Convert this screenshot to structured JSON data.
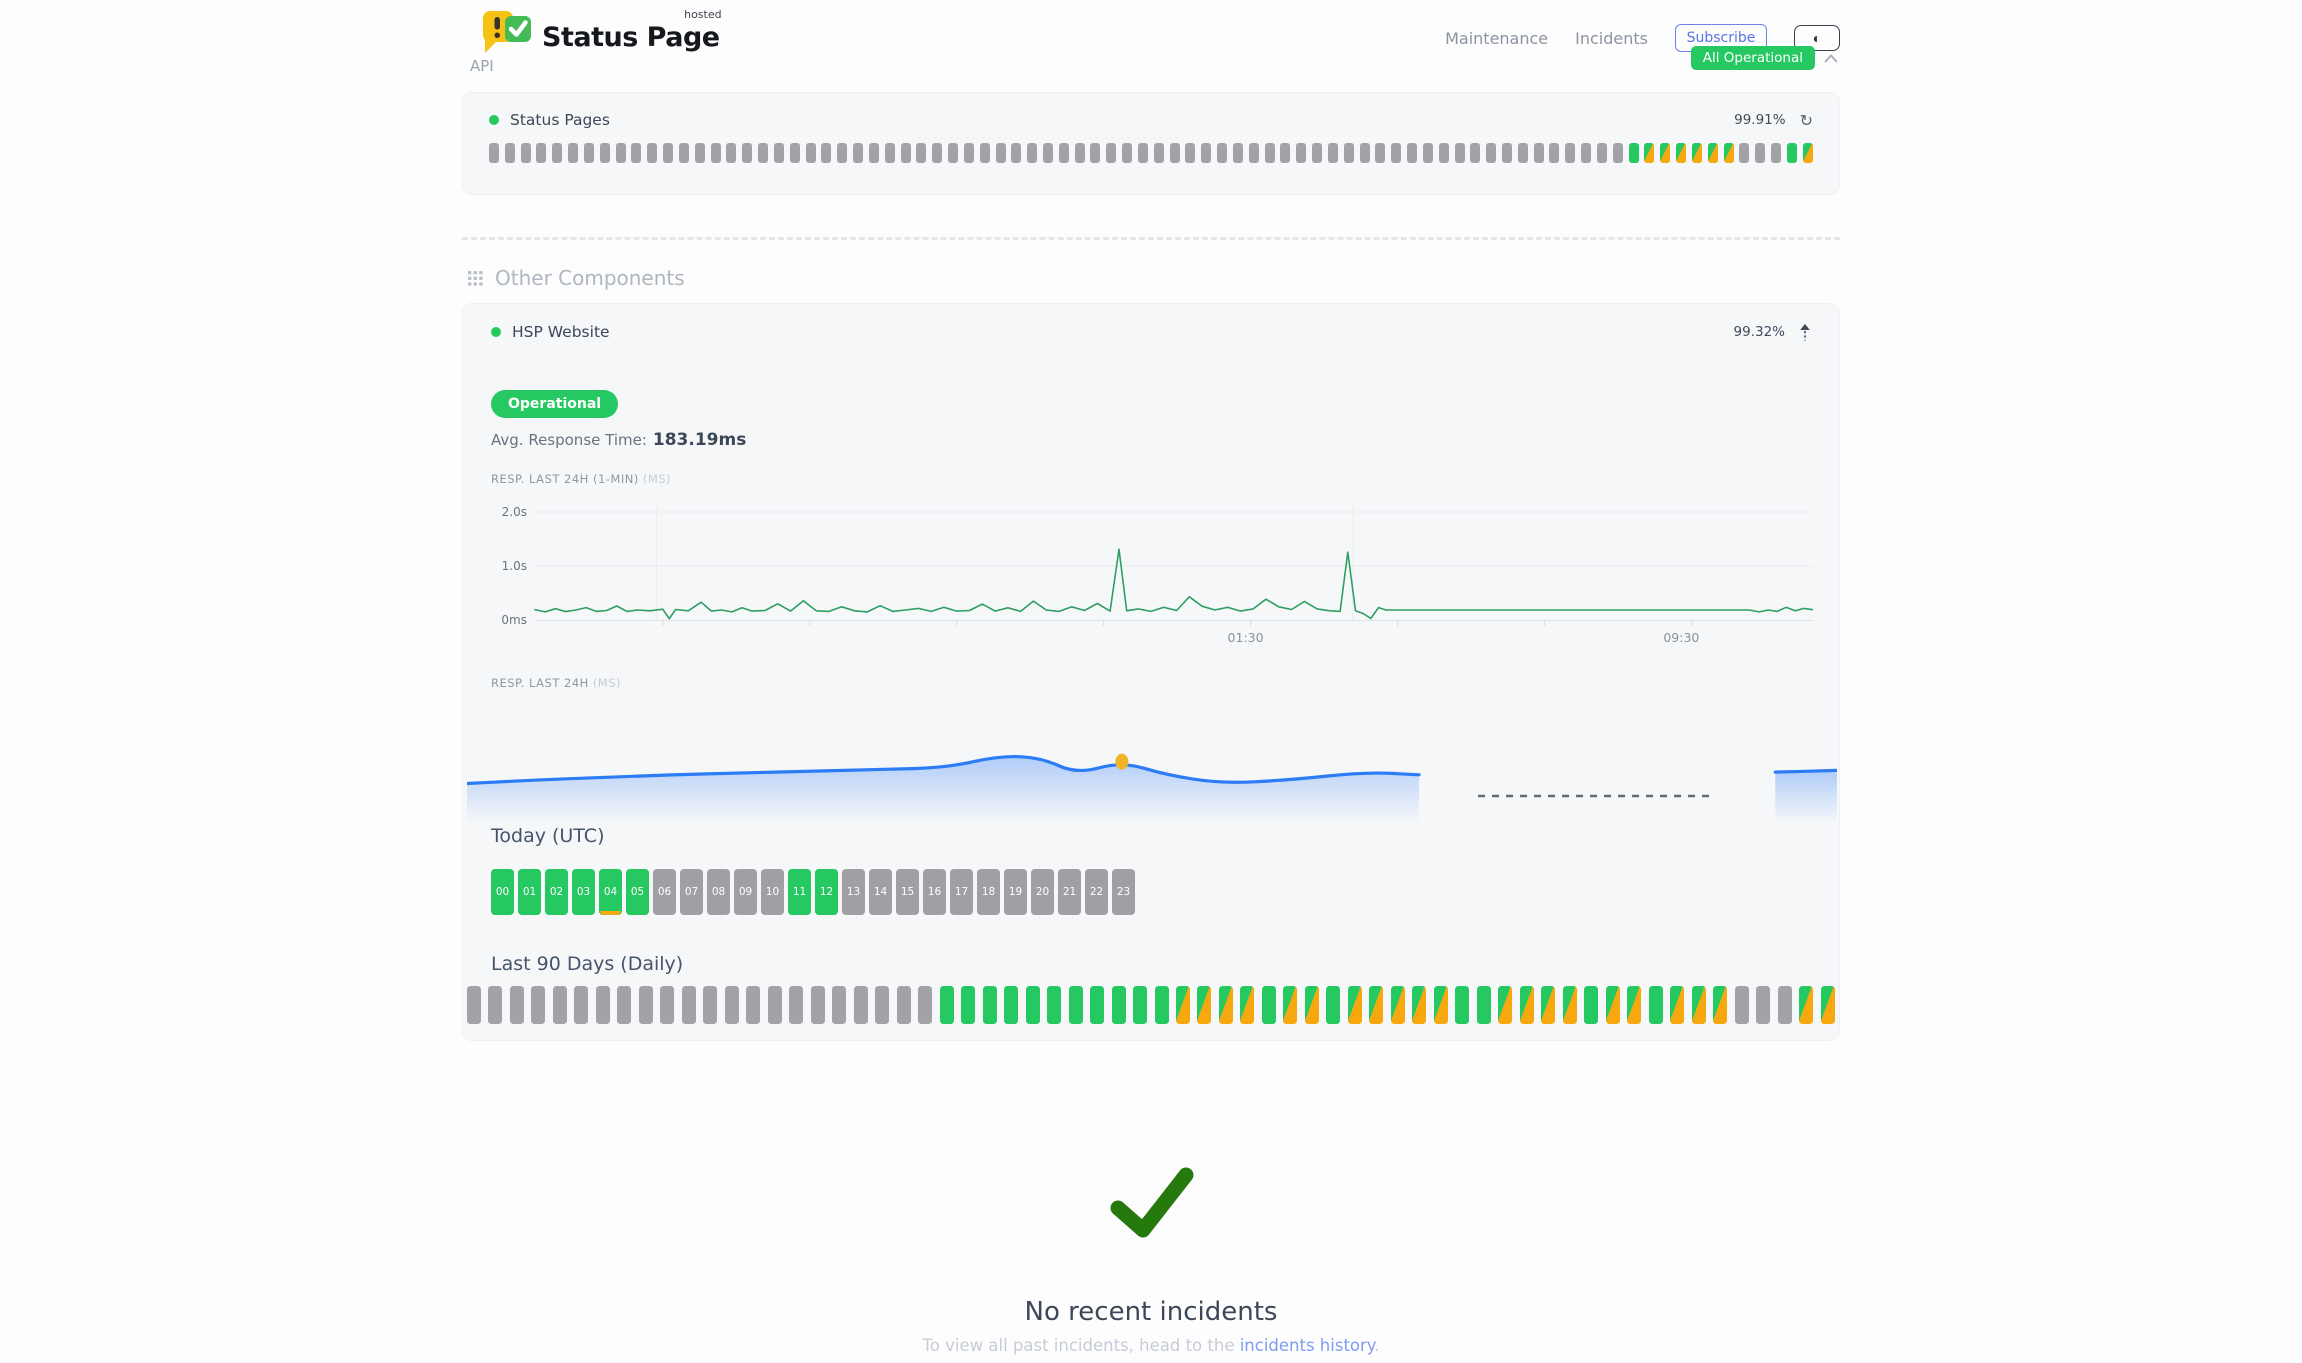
{
  "header": {
    "brand": {
      "name": "Status Page",
      "superscript": "hosted"
    },
    "nav": [
      {
        "label": "Maintenance"
      },
      {
        "label": "Incidents"
      }
    ],
    "subscribe_label": "Subscribe",
    "theme_icon_glyph": "◐",
    "overall_status": "All Operational"
  },
  "colors": {
    "green": "#26c961",
    "orange": "#f7a80e",
    "gray_bar": "#a1a3a6",
    "gray_box": "#9ea0a3",
    "line_green": "#2f9e63",
    "blue": "#2c7cf6",
    "dot_yellow": "#f0b429",
    "check_green": "#26790c",
    "link_blue": "#7e9cf3"
  },
  "api_section": {
    "title": "API",
    "component": {
      "name": "Status Pages",
      "uptime": "99.91%",
      "refresh_icon_glyph": "↻",
      "bars_pattern": "xxxxxxxxxxxxxxxxxxxxxxxxxxxxxxxxxxxxxxxxxxxxxxxxxxxxxxxxxxxxxxxxxxxxxxxxgooooooxxxgo"
    }
  },
  "other_components": {
    "title": "Other Components",
    "component": {
      "name": "HSP Website",
      "uptime": "99.32%",
      "status_badge": "Operational",
      "avg_response_label": "Avg. Response Time:",
      "avg_response_value": "183.19ms",
      "resp_1min_label": "RESP. LAST 24H (1-MIN)",
      "resp_1min_unit": "(MS)",
      "resp_24h_label": "RESP. LAST 24H",
      "resp_24h_unit": "(MS)",
      "today": {
        "title": "Today (UTC)",
        "hours": [
          {
            "label": "00",
            "status": "up"
          },
          {
            "label": "01",
            "status": "up"
          },
          {
            "label": "02",
            "status": "up"
          },
          {
            "label": "03",
            "status": "up"
          },
          {
            "label": "04",
            "status": "up",
            "note": "partial"
          },
          {
            "label": "05",
            "status": "up"
          },
          {
            "label": "06",
            "status": "off"
          },
          {
            "label": "07",
            "status": "off"
          },
          {
            "label": "08",
            "status": "off"
          },
          {
            "label": "09",
            "status": "off"
          },
          {
            "label": "10",
            "status": "off"
          },
          {
            "label": "11",
            "status": "up"
          },
          {
            "label": "12",
            "status": "up"
          },
          {
            "label": "13",
            "status": "off"
          },
          {
            "label": "14",
            "status": "off"
          },
          {
            "label": "15",
            "status": "off"
          },
          {
            "label": "16",
            "status": "off"
          },
          {
            "label": "17",
            "status": "off"
          },
          {
            "label": "18",
            "status": "off"
          },
          {
            "label": "19",
            "status": "off"
          },
          {
            "label": "20",
            "status": "off"
          },
          {
            "label": "21",
            "status": "off"
          },
          {
            "label": "22",
            "status": "off"
          },
          {
            "label": "23",
            "status": "off"
          }
        ]
      },
      "last90": {
        "title": "Last 90 Days (Daily)",
        "bars_pattern": "xxxxxxxxxxxxxxxxxxxxxxgggggggggggoooogoogoooooggoooogoogoooxxxoo"
      }
    }
  },
  "incidents": {
    "check_icon": "check-icon",
    "title": "No recent incidents",
    "subtitle_prefix": "To view all past incidents, head to the ",
    "link_label": "incidents history",
    "subtitle_suffix": "."
  },
  "chart_data": [
    {
      "type": "line",
      "title": "RESP. LAST 24H (1-MIN)",
      "ylabel_ticks": [
        "0ms",
        "1.0s",
        "2.0s"
      ],
      "ylim_ms": [
        0,
        2000
      ],
      "grid": true,
      "line_color": "#2f9e63",
      "x_gridlines": [
        0.095,
        0.64
      ],
      "x_axis_ticks": [
        0.1,
        0.215,
        0.33,
        0.445,
        0.56,
        0.675,
        0.79,
        0.905
      ],
      "x_tick_labels": [
        {
          "label": "01:30",
          "f": 0.556
        },
        {
          "label": "09:30",
          "f": 0.897
        }
      ],
      "points": [
        [
          0.0,
          190
        ],
        [
          0.008,
          150
        ],
        [
          0.016,
          210
        ],
        [
          0.024,
          155
        ],
        [
          0.032,
          185
        ],
        [
          0.04,
          230
        ],
        [
          0.048,
          160
        ],
        [
          0.056,
          175
        ],
        [
          0.064,
          260
        ],
        [
          0.072,
          160
        ],
        [
          0.08,
          185
        ],
        [
          0.09,
          170
        ],
        [
          0.1,
          200
        ],
        [
          0.105,
          25
        ],
        [
          0.11,
          195
        ],
        [
          0.12,
          170
        ],
        [
          0.13,
          330
        ],
        [
          0.138,
          165
        ],
        [
          0.146,
          185
        ],
        [
          0.154,
          150
        ],
        [
          0.162,
          225
        ],
        [
          0.17,
          165
        ],
        [
          0.18,
          175
        ],
        [
          0.19,
          300
        ],
        [
          0.2,
          165
        ],
        [
          0.21,
          355
        ],
        [
          0.22,
          170
        ],
        [
          0.23,
          160
        ],
        [
          0.24,
          245
        ],
        [
          0.25,
          170
        ],
        [
          0.26,
          150
        ],
        [
          0.27,
          265
        ],
        [
          0.28,
          160
        ],
        [
          0.29,
          185
        ],
        [
          0.3,
          215
        ],
        [
          0.31,
          160
        ],
        [
          0.32,
          235
        ],
        [
          0.33,
          165
        ],
        [
          0.34,
          175
        ],
        [
          0.35,
          295
        ],
        [
          0.36,
          165
        ],
        [
          0.37,
          225
        ],
        [
          0.38,
          160
        ],
        [
          0.39,
          350
        ],
        [
          0.4,
          185
        ],
        [
          0.41,
          160
        ],
        [
          0.42,
          245
        ],
        [
          0.43,
          175
        ],
        [
          0.44,
          305
        ],
        [
          0.45,
          165
        ],
        [
          0.457,
          1310
        ],
        [
          0.463,
          170
        ],
        [
          0.472,
          205
        ],
        [
          0.482,
          160
        ],
        [
          0.492,
          235
        ],
        [
          0.502,
          175
        ],
        [
          0.512,
          430
        ],
        [
          0.522,
          255
        ],
        [
          0.532,
          185
        ],
        [
          0.542,
          235
        ],
        [
          0.552,
          165
        ],
        [
          0.562,
          205
        ],
        [
          0.572,
          385
        ],
        [
          0.582,
          245
        ],
        [
          0.592,
          195
        ],
        [
          0.602,
          345
        ],
        [
          0.612,
          205
        ],
        [
          0.622,
          170
        ],
        [
          0.63,
          160
        ],
        [
          0.636,
          1255
        ],
        [
          0.642,
          170
        ],
        [
          0.648,
          120
        ],
        [
          0.654,
          30
        ],
        [
          0.66,
          230
        ],
        [
          0.666,
          185
        ],
        [
          0.672,
          185
        ],
        [
          0.7,
          185
        ],
        [
          0.75,
          185
        ],
        [
          0.8,
          185
        ],
        [
          0.85,
          185
        ],
        [
          0.9,
          185
        ],
        [
          0.95,
          185
        ],
        [
          0.958,
          150
        ],
        [
          0.965,
          185
        ],
        [
          0.972,
          160
        ],
        [
          0.979,
          235
        ],
        [
          0.986,
          170
        ],
        [
          0.993,
          215
        ],
        [
          1.0,
          190
        ]
      ]
    },
    {
      "type": "area",
      "title": "RESP. LAST 24H",
      "ylim_ms": [
        140,
        220
      ],
      "line_color": "#2c7cf6",
      "highlight_point": {
        "f": 0.478,
        "ms": 193,
        "color": "#f0b429"
      },
      "gap_dash": {
        "from": 0.738,
        "to": 0.909
      },
      "segments": [
        {
          "points": [
            [
              0.0,
              168
            ],
            [
              0.05,
              172
            ],
            [
              0.1,
              175
            ],
            [
              0.15,
              178
            ],
            [
              0.2,
              180
            ],
            [
              0.25,
              182
            ],
            [
              0.3,
              184
            ],
            [
              0.35,
              186
            ],
            [
              0.39,
              200
            ],
            [
              0.42,
              197
            ],
            [
              0.445,
              179
            ],
            [
              0.478,
              193
            ],
            [
              0.51,
              178
            ],
            [
              0.55,
              168
            ],
            [
              0.6,
              172
            ],
            [
              0.655,
              181
            ],
            [
              0.695,
              178
            ]
          ]
        },
        {
          "points": [
            [
              0.955,
              181
            ],
            [
              1.0,
              183
            ]
          ]
        }
      ]
    }
  ]
}
